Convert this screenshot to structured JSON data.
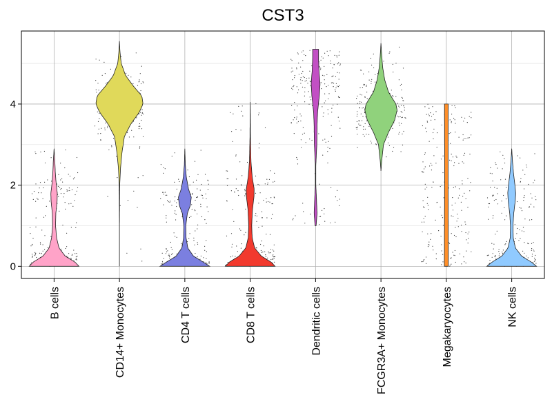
{
  "chart_data": {
    "type": "violin",
    "title": "CST3",
    "xlabel": "",
    "ylabel": "",
    "ylim": [
      -0.3,
      5.8
    ],
    "y_ticks": [
      0,
      2,
      4
    ],
    "y_tick_labels": [
      "0",
      "2",
      "4"
    ],
    "grid": true,
    "jitter_points": true,
    "categories": [
      "B cells",
      "CD14+ Monocytes",
      "CD4 T cells",
      "CD8 T cells",
      "Dendritic cells",
      "FCGR3A+ Monocytes",
      "Megakaryocytes",
      "NK cells"
    ],
    "series": [
      {
        "category": "B cells",
        "color": "#ffa3c8",
        "min": 0.0,
        "max": 2.9,
        "profile": [
          [
            0.0,
            1.0
          ],
          [
            0.1,
            0.85
          ],
          [
            0.25,
            0.45
          ],
          [
            0.45,
            0.2
          ],
          [
            0.7,
            0.1
          ],
          [
            1.0,
            0.06
          ],
          [
            1.3,
            0.07
          ],
          [
            1.6,
            0.12
          ],
          [
            1.8,
            0.13
          ],
          [
            2.0,
            0.09
          ],
          [
            2.3,
            0.05
          ],
          [
            2.6,
            0.03
          ],
          [
            2.9,
            0.0
          ]
        ]
      },
      {
        "category": "CD14+ Monocytes",
        "color": "#e0d95a",
        "min": 0.0,
        "max": 5.55,
        "profile": [
          [
            0.0,
            0.0
          ],
          [
            1.0,
            0.0
          ],
          [
            2.0,
            0.01
          ],
          [
            2.4,
            0.04
          ],
          [
            2.8,
            0.1
          ],
          [
            3.2,
            0.2
          ],
          [
            3.5,
            0.45
          ],
          [
            3.8,
            0.8
          ],
          [
            4.0,
            0.95
          ],
          [
            4.2,
            0.9
          ],
          [
            4.45,
            0.55
          ],
          [
            4.7,
            0.25
          ],
          [
            5.0,
            0.07
          ],
          [
            5.3,
            0.02
          ],
          [
            5.55,
            0.0
          ]
        ]
      },
      {
        "category": "CD4 T cells",
        "color": "#7b7fe0",
        "min": 0.0,
        "max": 2.9,
        "profile": [
          [
            0.0,
            1.0
          ],
          [
            0.1,
            0.75
          ],
          [
            0.25,
            0.35
          ],
          [
            0.45,
            0.12
          ],
          [
            0.7,
            0.05
          ],
          [
            1.0,
            0.04
          ],
          [
            1.3,
            0.1
          ],
          [
            1.5,
            0.22
          ],
          [
            1.7,
            0.26
          ],
          [
            1.9,
            0.15
          ],
          [
            2.2,
            0.06
          ],
          [
            2.5,
            0.02
          ],
          [
            2.9,
            0.0
          ]
        ]
      },
      {
        "category": "CD8 T cells",
        "color": "#f23a2e",
        "min": 0.0,
        "max": 4.05,
        "profile": [
          [
            0.0,
            1.0
          ],
          [
            0.1,
            0.85
          ],
          [
            0.25,
            0.45
          ],
          [
            0.45,
            0.18
          ],
          [
            0.7,
            0.08
          ],
          [
            1.0,
            0.06
          ],
          [
            1.4,
            0.09
          ],
          [
            1.7,
            0.15
          ],
          [
            1.9,
            0.16
          ],
          [
            2.2,
            0.08
          ],
          [
            2.6,
            0.03
          ],
          [
            3.2,
            0.01
          ],
          [
            4.05,
            0.0
          ]
        ]
      },
      {
        "category": "Dendritic cells",
        "color": "#c24fc4",
        "min": 1.0,
        "max": 5.35,
        "profile": [
          [
            1.0,
            0.02
          ],
          [
            1.3,
            0.06
          ],
          [
            1.6,
            0.04
          ],
          [
            2.0,
            0.01
          ],
          [
            2.5,
            0.01
          ],
          [
            3.0,
            0.05
          ],
          [
            3.5,
            0.06
          ],
          [
            3.8,
            0.08
          ],
          [
            4.2,
            0.15
          ],
          [
            4.5,
            0.18
          ],
          [
            4.8,
            0.14
          ],
          [
            5.1,
            0.12
          ],
          [
            5.35,
            0.12
          ]
        ]
      },
      {
        "category": "FCGR3A+ Monocytes",
        "color": "#90d27c",
        "min": 2.35,
        "max": 5.5,
        "profile": [
          [
            2.35,
            0.0
          ],
          [
            2.6,
            0.03
          ],
          [
            3.0,
            0.1
          ],
          [
            3.3,
            0.3
          ],
          [
            3.6,
            0.55
          ],
          [
            3.85,
            0.65
          ],
          [
            4.0,
            0.6
          ],
          [
            4.3,
            0.3
          ],
          [
            4.6,
            0.15
          ],
          [
            4.9,
            0.07
          ],
          [
            5.2,
            0.03
          ],
          [
            5.5,
            0.0
          ]
        ]
      },
      {
        "category": "Megakaryocytes",
        "color": "#ff8f29",
        "min": 0.0,
        "max": 4.0,
        "profile": [
          [
            0.0,
            0.08
          ],
          [
            1.0,
            0.075
          ],
          [
            2.0,
            0.07
          ],
          [
            3.0,
            0.07
          ],
          [
            4.0,
            0.075
          ]
        ]
      },
      {
        "category": "NK cells",
        "color": "#90caff",
        "min": 0.0,
        "max": 2.9,
        "profile": [
          [
            0.0,
            1.0
          ],
          [
            0.1,
            0.8
          ],
          [
            0.25,
            0.4
          ],
          [
            0.45,
            0.15
          ],
          [
            0.7,
            0.06
          ],
          [
            1.0,
            0.05
          ],
          [
            1.3,
            0.08
          ],
          [
            1.6,
            0.14
          ],
          [
            1.8,
            0.16
          ],
          [
            2.0,
            0.13
          ],
          [
            2.3,
            0.07
          ],
          [
            2.6,
            0.03
          ],
          [
            2.9,
            0.0
          ]
        ]
      }
    ]
  }
}
